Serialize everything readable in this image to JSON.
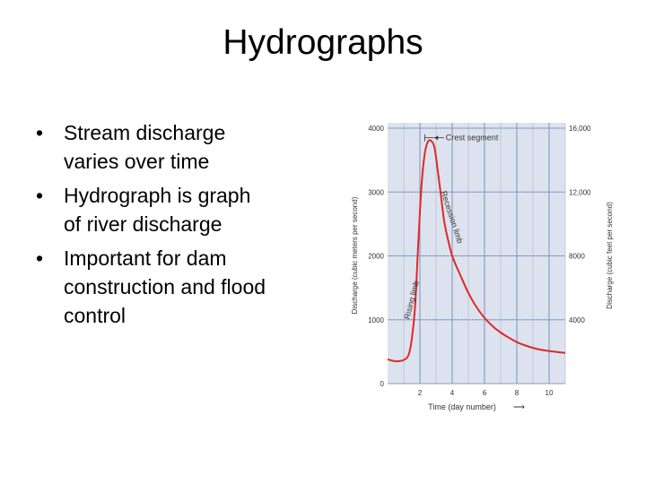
{
  "slide": {
    "title": "Hydrographs",
    "bullets": [
      "Stream discharge varies over time",
      "Hydrograph is graph of river discharge",
      "Important for dam construction and flood control"
    ]
  },
  "chart_data": {
    "type": "line",
    "title": "",
    "xlabel": "Time (day number)",
    "ylabel": "Discharge (cubic meters per second)",
    "y2label": "Discharge (cubic feet per second)",
    "xlim": [
      0,
      11
    ],
    "ylim": [
      0,
      4000
    ],
    "x_ticks": [
      2,
      4,
      6,
      8,
      10
    ],
    "y_ticks": [
      0,
      1000,
      2000,
      3000,
      4000
    ],
    "y_tick_labels": [
      "0",
      "1000",
      "2000",
      "3000",
      "4000"
    ],
    "y2_ticks": [
      4000,
      8000,
      12000,
      16000
    ],
    "y2_tick_labels": [
      "4000",
      "8000",
      "12,000",
      "16,000"
    ],
    "y2lim": [
      0,
      16000
    ],
    "grid": true,
    "background": "#dde3ee",
    "line_color": "#e02828",
    "series": [
      {
        "x": [
          0,
          0.5,
          1.0,
          1.3,
          1.5,
          1.7,
          1.9,
          2.1,
          2.3,
          2.5,
          2.7,
          2.9,
          3.1,
          3.3,
          3.5,
          3.7,
          4.0,
          4.5,
          5.0,
          5.5,
          6.0,
          6.5,
          7.0,
          7.5,
          8.0,
          8.5,
          9.0,
          9.5,
          10.0,
          10.5,
          11.0
        ],
        "y": [
          380,
          350,
          370,
          450,
          700,
          1200,
          2200,
          3100,
          3600,
          3790,
          3800,
          3700,
          3350,
          2950,
          2550,
          2300,
          2000,
          1700,
          1420,
          1200,
          1030,
          900,
          800,
          720,
          650,
          600,
          560,
          530,
          510,
          495,
          480
        ]
      }
    ],
    "annotations": [
      {
        "text": "Crest segment"
      },
      {
        "text": "Rising limb"
      },
      {
        "text": "Recession limb"
      }
    ]
  }
}
